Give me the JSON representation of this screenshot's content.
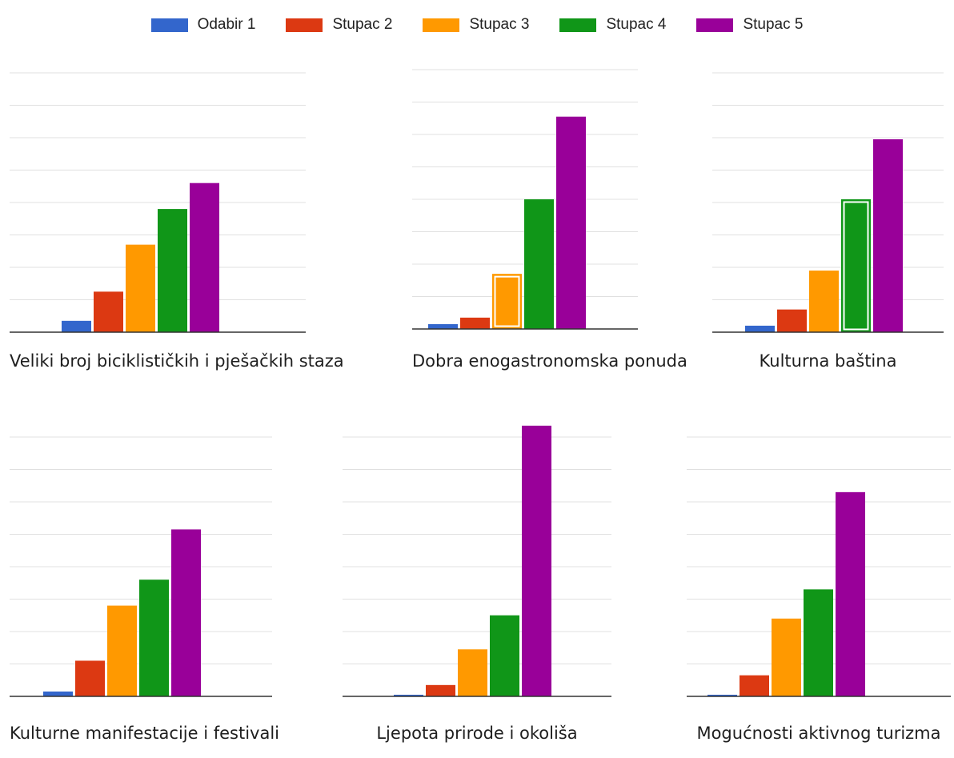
{
  "colors": {
    "Odabir 1": "#3366cc",
    "Stupac 2": "#dc3912",
    "Stupac 3": "#ff9900",
    "Stupac 4": "#109618",
    "Stupac 5": "#990099",
    "gridline": "#e0e0e0",
    "baseline": "#333333"
  },
  "legend": {
    "position": "top",
    "entries": [
      "Odabir 1",
      "Stupac 2",
      "Stupac 3",
      "Stupac 4",
      "Stupac 5"
    ]
  },
  "chart_data": [
    {
      "type": "bar",
      "title": "Veliki broj biciklističkih i pješačkih staza",
      "categories": [
        "Odabir 1",
        "Stupac 2",
        "Stupac 3",
        "Stupac 4",
        "Stupac 5"
      ],
      "values": [
        3.5,
        12.5,
        27,
        38,
        46
      ],
      "ylim": [
        0,
        80
      ],
      "grid": true,
      "highlighted": []
    },
    {
      "type": "bar",
      "title": "Dobra enogastronomska ponuda",
      "categories": [
        "Odabir 1",
        "Stupac 2",
        "Stupac 3",
        "Stupac 4",
        "Stupac 5"
      ],
      "values": [
        1.5,
        3.5,
        17,
        40,
        65.5
      ],
      "ylim": [
        0,
        80
      ],
      "grid": true,
      "highlighted": [
        2
      ]
    },
    {
      "type": "bar",
      "title": "Kulturna baština",
      "categories": [
        "Odabir 1",
        "Stupac 2",
        "Stupac 3",
        "Stupac 4",
        "Stupac 5"
      ],
      "values": [
        2,
        7,
        19,
        41,
        59.5
      ],
      "ylim": [
        0,
        80
      ],
      "grid": true,
      "highlighted": [
        3
      ]
    },
    {
      "type": "bar",
      "title": "Kulturne manifestacije i festivali",
      "categories": [
        "Odabir 1",
        "Stupac 2",
        "Stupac 3",
        "Stupac 4",
        "Stupac 5"
      ],
      "values": [
        1.5,
        11,
        28,
        36,
        51.5
      ],
      "ylim": [
        0,
        80
      ],
      "grid": true,
      "highlighted": []
    },
    {
      "type": "bar",
      "title": "Ljepota prirode i okoliša",
      "categories": [
        "Odabir 1",
        "Stupac 2",
        "Stupac 3",
        "Stupac 4",
        "Stupac 5"
      ],
      "values": [
        0.5,
        3.5,
        14.5,
        25,
        83.5
      ],
      "ylim": [
        0,
        80
      ],
      "grid": true,
      "highlighted": []
    },
    {
      "type": "bar",
      "title": "Mogućnosti aktivnog turizma",
      "categories": [
        "Odabir 1",
        "Stupac 2",
        "Stupac 3",
        "Stupac 4",
        "Stupac 5"
      ],
      "values": [
        0.5,
        6.5,
        24,
        33,
        63
      ],
      "ylim": [
        0,
        80
      ],
      "grid": true,
      "highlighted": []
    }
  ]
}
